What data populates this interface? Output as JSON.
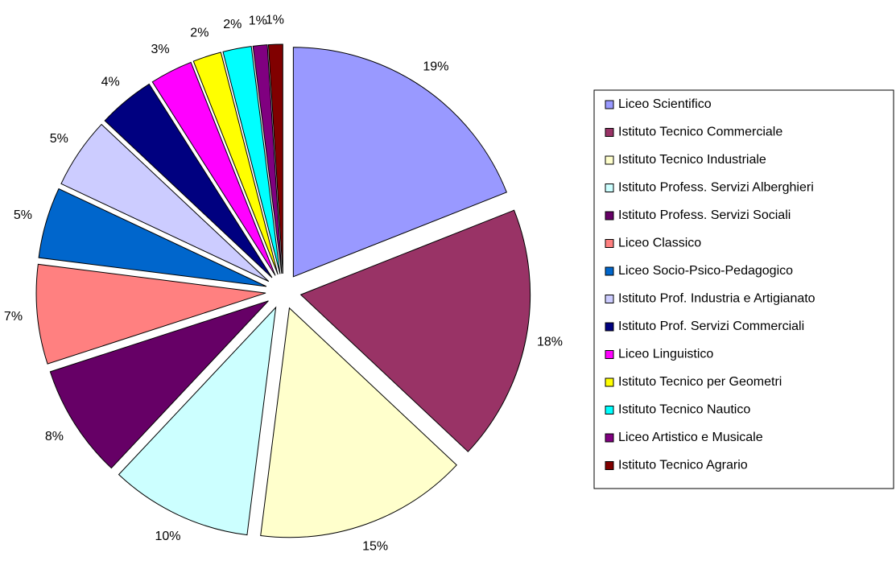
{
  "chart_data": {
    "type": "pie",
    "categories": [
      "Liceo Scientifico",
      "Istituto Tecnico Commerciale",
      "Istituto Tecnico Industriale",
      "Istituto Profess. Servizi Alberghieri",
      "Istituto Profess. Servizi Sociali",
      "Liceo Classico",
      "Liceo Socio-Psico-Pedagogico",
      "Istituto Prof. Industria e Artigianato",
      "Istituto Prof. Servizi Commerciali",
      "Liceo Linguistico",
      "Istituto Tecnico per Geometri",
      "Istituto Tecnico Nautico",
      "Liceo Artistico e Musicale",
      "Istituto Tecnico Agrario"
    ],
    "values": [
      19,
      18,
      15,
      10,
      8,
      7,
      5,
      5,
      4,
      3,
      2,
      2,
      1,
      1
    ],
    "value_labels": [
      "19%",
      "18%",
      "15%",
      "10%",
      "8%",
      "7%",
      "5%",
      "5%",
      "4%",
      "3%",
      "2%",
      "2%",
      "1%",
      "1%"
    ],
    "colors": [
      "#9999ff",
      "#993366",
      "#ffffcc",
      "#ccffff",
      "#660066",
      "#ff8080",
      "#0066cc",
      "#ccccff",
      "#000080",
      "#ff00ff",
      "#ffff00",
      "#00ffff",
      "#800080",
      "#800000"
    ],
    "legend": "right"
  }
}
